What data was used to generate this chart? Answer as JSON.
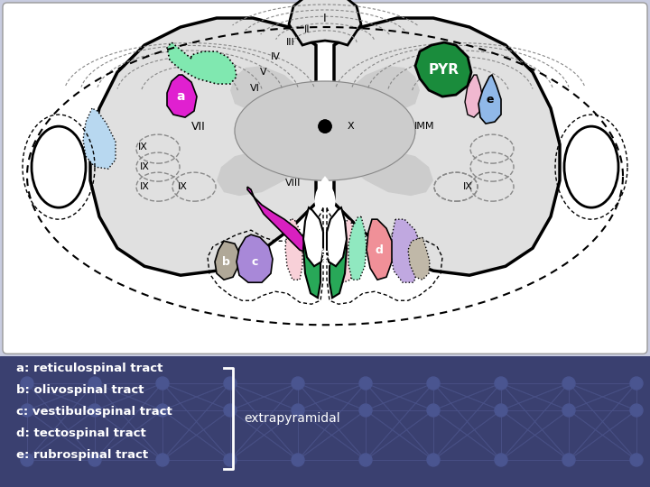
{
  "bg_color": "#3a4070",
  "diagram_bg": "#ffffff",
  "slide_bg": "#c8cce0",
  "legend_items": [
    "a: reticulospinal tract",
    "b: olivospinal tract",
    "c: vestibulospinal tract",
    "d: tectospinal tract",
    "e: rubrospinal tract"
  ],
  "extrapyramidal_text": "extrapyramidal",
  "colors": {
    "light_green_area": "#80e8b0",
    "magenta_a": "#e020d0",
    "light_blue_area": "#b8d8f0",
    "PYR_green": "#1a8c3c",
    "pink_area": "#f0b8d0",
    "blue_e": "#90b8e8",
    "gray_b": "#b0a898",
    "lavender_c": "#a888d8",
    "pink_light": "#f0b8c8",
    "teal_pyr": "#30b878",
    "pink_d": "#f09098",
    "lavender_right": "#c0a8e0",
    "gray_right_b": "#c0b8a8",
    "magenta_curvy": "#d820c0",
    "gray_matter": "#cccccc",
    "white_matter": "#e8e8e8"
  }
}
